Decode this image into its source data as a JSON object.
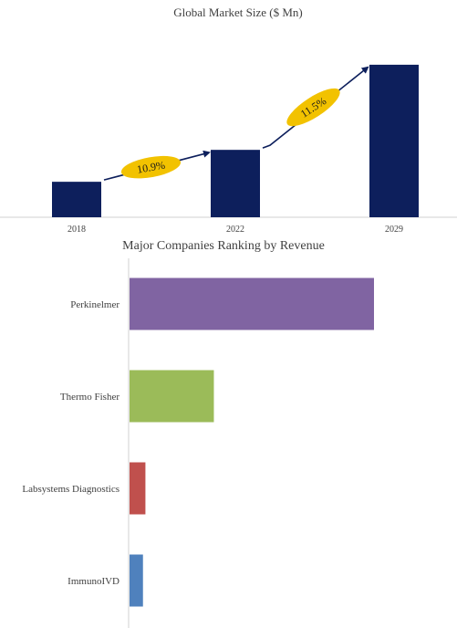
{
  "chart_data": [
    {
      "type": "bar",
      "title": "Global Market Size ($ Mn)",
      "categories": [
        "2018",
        "2022",
        "2029"
      ],
      "values": [
        40,
        76,
        172
      ],
      "ylim": [
        0,
        175
      ],
      "grid": false,
      "bar_color": "#0d1f5c",
      "annotations": [
        {
          "label": "10.9%",
          "from": "2018",
          "to": "2022"
        },
        {
          "label": "11.5%",
          "from": "2022",
          "to": "2029"
        }
      ],
      "annotation_color": "#f2c200",
      "arrow_color": "#0d1f5c"
    },
    {
      "type": "bar",
      "orientation": "horizontal",
      "title": "Major Companies Ranking by Revenue",
      "categories": [
        "Perkinelmer",
        "Thermo Fisher",
        "Labsystems Diagnostics",
        "ImmunoIVD"
      ],
      "values": [
        100,
        34.5,
        6.5,
        5.5
      ],
      "xlim": [
        0,
        120
      ],
      "grid": false,
      "colors": [
        "#8064a2",
        "#9bbb59",
        "#c0504d",
        "#4f81bd"
      ]
    }
  ]
}
